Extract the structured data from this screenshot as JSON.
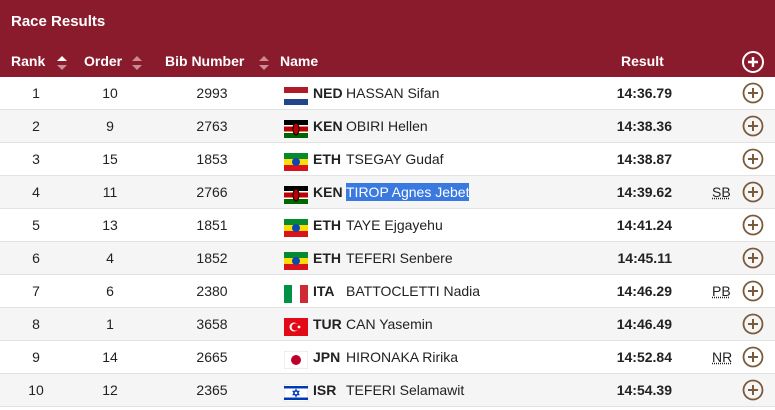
{
  "header": {
    "title": "Race Results"
  },
  "columns": {
    "rank": "Rank",
    "order": "Order",
    "bib": "Bib Number",
    "name": "Name",
    "result": "Result"
  },
  "rows": [
    {
      "rank": 1,
      "order": 10,
      "bib": 2993,
      "country": "NED",
      "name": "HASSAN Sifan",
      "result": "14:36.79"
    },
    {
      "rank": 2,
      "order": 9,
      "bib": 2763,
      "country": "KEN",
      "name": "OBIRI Hellen",
      "result": "14:38.36"
    },
    {
      "rank": 3,
      "order": 15,
      "bib": 1853,
      "country": "ETH",
      "name": "TSEGAY Gudaf",
      "result": "14:38.87"
    },
    {
      "rank": 4,
      "order": 11,
      "bib": 2766,
      "country": "KEN",
      "name": "TIROP Agnes Jebet",
      "result": "14:39.62",
      "note": "SB"
    },
    {
      "rank": 5,
      "order": 13,
      "bib": 1851,
      "country": "ETH",
      "name": "TAYE Ejgayehu",
      "result": "14:41.24"
    },
    {
      "rank": 6,
      "order": 4,
      "bib": 1852,
      "country": "ETH",
      "name": "TEFERI Senbere",
      "result": "14:45.11"
    },
    {
      "rank": 7,
      "order": 6,
      "bib": 2380,
      "country": "ITA",
      "name": "BATTOCLETTI Nadia",
      "result": "14:46.29",
      "note": "PB"
    },
    {
      "rank": 8,
      "order": 1,
      "bib": 3658,
      "country": "TUR",
      "name": "CAN Yasemin",
      "result": "14:46.49"
    },
    {
      "rank": 9,
      "order": 14,
      "bib": 2665,
      "country": "JPN",
      "name": "HIRONAKA Ririka",
      "result": "14:52.84",
      "note": "NR"
    },
    {
      "rank": 10,
      "order": 12,
      "bib": 2365,
      "country": "ISR",
      "name": "TEFERI Selamawit",
      "result": "14:54.39"
    }
  ]
}
